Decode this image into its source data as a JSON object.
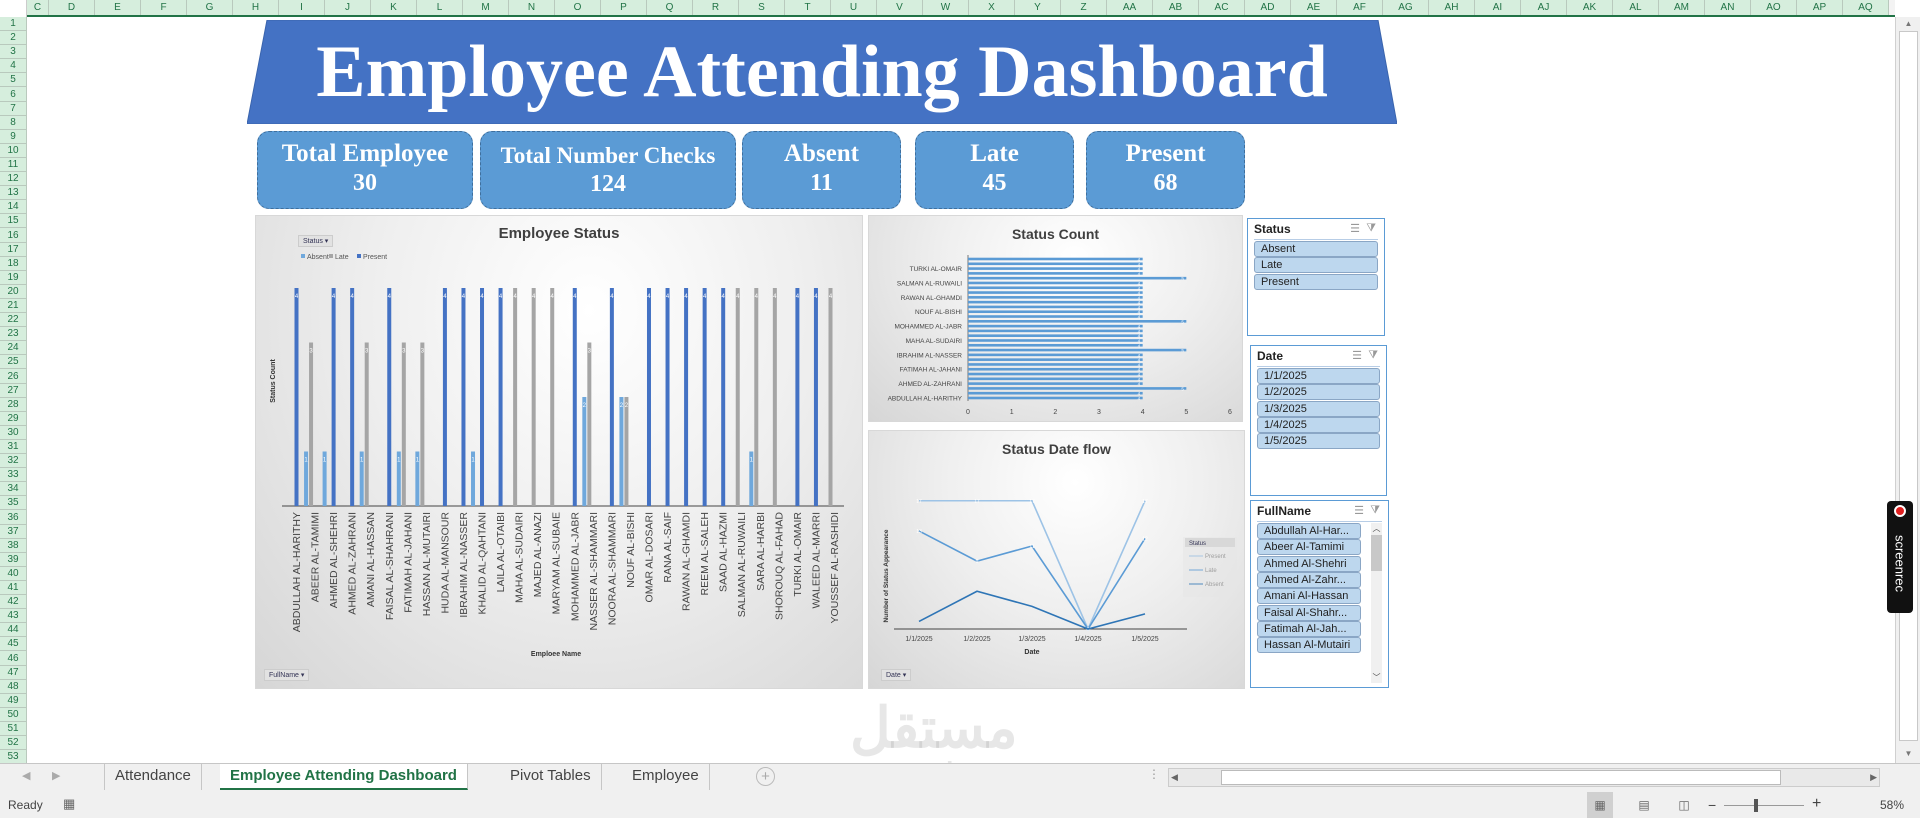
{
  "sheet": {
    "columns": [
      "C",
      "D",
      "E",
      "F",
      "G",
      "H",
      "I",
      "J",
      "K",
      "L",
      "M",
      "N",
      "O",
      "P",
      "Q",
      "R",
      "S",
      "T",
      "U",
      "V",
      "W",
      "X",
      "Y",
      "Z",
      "AA",
      "AB",
      "AC",
      "AD",
      "AE",
      "AF",
      "AG",
      "AH",
      "AI",
      "AJ",
      "AK",
      "AL",
      "AM",
      "AN",
      "AO",
      "AP",
      "AQ"
    ],
    "row_count": 53
  },
  "dashboard": {
    "title": "Employee Attending Dashboard",
    "title_color": "#4472c4",
    "kpi_color": "#5b9bd5",
    "kpis": [
      {
        "label": "Total Employee",
        "value": "30"
      },
      {
        "label": "Total Number Checks",
        "value": "124"
      },
      {
        "label": "Absent",
        "value": "11"
      },
      {
        "label": "Late",
        "value": "45"
      },
      {
        "label": "Present",
        "value": "68"
      }
    ]
  },
  "chart_data": [
    {
      "type": "bar",
      "title": "Employee Status",
      "xlabel": "Emploee Name",
      "ylabel": "Status Count",
      "legend_title": "Status",
      "legend_placement": "top-left",
      "filter_button": "FullName",
      "categories": [
        "ABDULLAH AL-HARITHY",
        "ABEER AL-TAMIMI",
        "AHMED AL-SHEHRI",
        "AHMED AL-ZAHRANI",
        "AMANI AL-HASSAN",
        "FAISAL AL-SHAHRANI",
        "FATIMAH AL-JAHANI",
        "HASSAN AL-MUTAIRI",
        "HUDA AL-MANSOUR",
        "IBRAHIM AL-NASSER",
        "KHALID AL-QAHTANI",
        "LAILA AL-OTAIBI",
        "MAHA AL-SUDAIRI",
        "MAJED AL-ANAZI",
        "MARYAM AL-SUBAIE",
        "MOHAMMED AL-JABR",
        "NASSER AL-SHAMMARI",
        "NOORA AL-SHAMMARI",
        "NOUF AL-BISHI",
        "OMAR AL-DOSARI",
        "RANA AL-SAIF",
        "RAWAN AL-GHAMDI",
        "REEM AL-SALEH",
        "SAAD AL-HAZMI",
        "SALMAN AL-RUWAILI",
        "SARA AL-HARBI",
        "SHOROUQ AL-FAHAD",
        "TURKI AL-OMAIR",
        "WALEED AL-MARRI",
        "YOUSSEF AL-RASHIDI"
      ],
      "series": [
        {
          "name": "Absent",
          "color": "#6fa8dc",
          "values": [
            0,
            1,
            1,
            0,
            1,
            0,
            1,
            1,
            0,
            0,
            1,
            0,
            0,
            0,
            0,
            0,
            2,
            0,
            2,
            0,
            0,
            0,
            0,
            0,
            0,
            1,
            0,
            0,
            0,
            0
          ]
        },
        {
          "name": "Late",
          "color": "#a5a5a5",
          "values": [
            0,
            3,
            0,
            0,
            3,
            0,
            3,
            3,
            0,
            0,
            0,
            0,
            4,
            4,
            4,
            0,
            3,
            0,
            2,
            0,
            0,
            0,
            0,
            0,
            4,
            4,
            4,
            0,
            0,
            4
          ]
        },
        {
          "name": "Present",
          "color": "#4472c4",
          "values": [
            4,
            0,
            4,
            4,
            0,
            4,
            0,
            0,
            4,
            4,
            4,
            4,
            0,
            0,
            0,
            4,
            0,
            4,
            0,
            4,
            4,
            4,
            4,
            4,
            0,
            0,
            0,
            4,
            4,
            0
          ]
        }
      ],
      "ylim": [
        0,
        4
      ],
      "grid": false
    },
    {
      "type": "bar",
      "orientation": "horizontal",
      "title": "Status Count",
      "color": "#5b9bd5",
      "categories": [
        "ABDULLAH AL-HARITHY",
        "ABEER AL-TAMIMI",
        "AHMED AL-SHEHRI",
        "AHMED AL-ZAHRANI",
        "AMANI AL-HASSAN",
        "FAISAL AL-SHAHRANI",
        "FATIMAH AL-JAHANI",
        "HASSAN AL-MUTAIRI",
        "HUDA AL-MANSOUR",
        "IBRAHIM AL-NASSER",
        "KHALID AL-QAHTANI",
        "LAILA AL-OTAIBI",
        "MAHA AL-SUDAIRI",
        "MAJED AL-ANAZI",
        "MARYAM AL-SUBAIE",
        "MOHAMMED AL-JABR",
        "NASSER AL-SHAMMARI",
        "NOORA AL-SHAMMARI",
        "NOUF AL-BISHI",
        "OMAR AL-DOSARI",
        "RANA AL-SAIF",
        "RAWAN AL-GHAMDI",
        "REEM AL-SALEH",
        "SAAD AL-HAZMI",
        "SALMAN AL-RUWAILI",
        "SARA AL-HARBI",
        "SHOROUQ AL-FAHAD",
        "TURKI AL-OMAIR",
        "WALEED AL-MARRI",
        "YOUSSEF AL-RASHIDI"
      ],
      "shown_labels": [
        "ABDULLAH AL-HARITHY",
        "AHMED AL-ZAHRANI",
        "FATIMAH AL-JAHANI",
        "IBRAHIM AL-NASSER",
        "MAHA AL-SUDAIRI",
        "MOHAMMED AL-JABR",
        "NOUF AL-BISHI",
        "RAWAN AL-GHAMDI",
        "SALMAN AL-RUWAILI",
        "TURKI AL-OMAIR"
      ],
      "values": [
        4,
        4,
        5,
        4,
        4,
        4,
        4,
        4,
        4,
        4,
        5,
        4,
        4,
        4,
        4,
        4,
        5,
        4,
        4,
        4,
        4,
        4,
        4,
        4,
        4,
        5,
        4,
        4,
        4,
        4
      ],
      "xticks": [
        "0",
        "1",
        "2",
        "3",
        "4",
        "5",
        "6"
      ],
      "xlim": [
        0,
        6
      ],
      "grid": false
    },
    {
      "type": "line",
      "title": "Status Date flow",
      "xlabel": "Date",
      "ylabel": "Number of Status Appearance",
      "legend_title": "Status",
      "legend_placement": "right",
      "filter_button": "Date",
      "x": [
        "1/1/2025",
        "1/2/2025",
        "1/3/2025",
        "1/4/2025",
        "1/5/2025"
      ],
      "series": [
        {
          "name": "Present",
          "color": "#9dc3e6",
          "values": [
            17,
            17,
            17,
            0,
            17
          ]
        },
        {
          "name": "Late",
          "color": "#5b9bd5",
          "values": [
            13,
            9,
            11,
            0,
            12
          ]
        },
        {
          "name": "Absent",
          "color": "#2e75b6",
          "values": [
            1,
            5,
            3,
            0,
            2
          ]
        }
      ],
      "ylim": [
        0,
        18
      ],
      "grid": false
    }
  ],
  "slicers": {
    "status": {
      "title": "Status",
      "items": [
        "Absent",
        "Late",
        "Present"
      ]
    },
    "date": {
      "title": "Date",
      "items": [
        "1/1/2025",
        "1/2/2025",
        "1/3/2025",
        "1/4/2025",
        "1/5/2025"
      ]
    },
    "fullname": {
      "title": "FullName",
      "items": [
        "Abdullah Al-Har...",
        "Abeer Al-Tamimi",
        "Ahmed Al-Shehri",
        "Ahmed Al-Zahr...",
        "Amani Al-Hassan",
        "Faisal Al-Shahr...",
        "Fatimah Al-Jah...",
        "Hassan Al-Mutairi"
      ]
    }
  },
  "tabs": {
    "items": [
      "Attendance",
      "Employee Attending Dashboard",
      "Pivot Tables",
      "Employee"
    ],
    "active": "Employee Attending Dashboard"
  },
  "statusbar": {
    "ready": "Ready",
    "zoom": "58%",
    "zoom_level_percent": 58
  },
  "overlays": {
    "screenrec": "screenrec",
    "watermark": "mostaql.com"
  }
}
